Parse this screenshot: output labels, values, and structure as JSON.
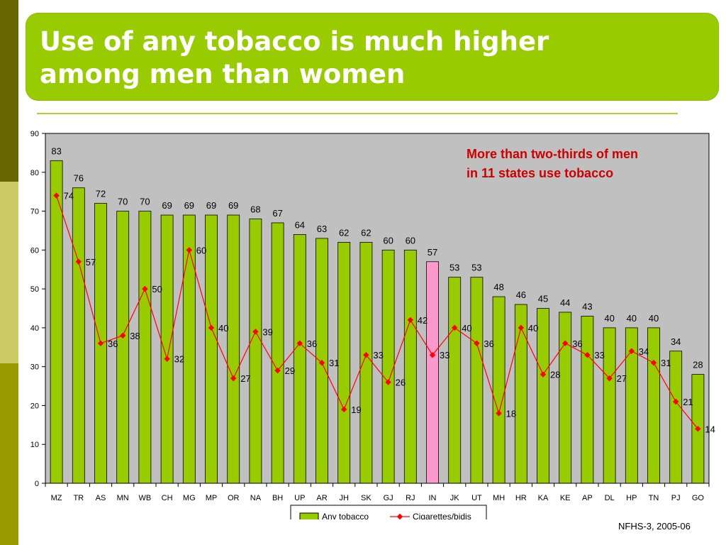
{
  "slide": {
    "title_line1": "Use of any tobacco is much  higher",
    "title_line2": "among men than women",
    "source": "NFHS-3, 2005-06"
  },
  "colors": {
    "title_bg": "#99cc00",
    "bar": "#99cc00",
    "bar_highlight": "#ff99cc",
    "line": "#ff0000",
    "plot_bg": "#c0c0c0",
    "annotation": "#cc0000"
  },
  "chart_data": {
    "type": "bar",
    "categories": [
      "MZ",
      "TR",
      "AS",
      "MN",
      "WB",
      "CH",
      "MG",
      "MP",
      "OR",
      "NA",
      "BH",
      "UP",
      "AR",
      "JH",
      "SK",
      "GJ",
      "RJ",
      "IN",
      "JK",
      "UT",
      "MH",
      "HR",
      "KA",
      "KE",
      "AP",
      "DL",
      "HP",
      "TN",
      "PJ",
      "GO"
    ],
    "highlight_category": "IN",
    "series": [
      {
        "name": "Any tobacco",
        "kind": "bar",
        "values": [
          83,
          76,
          72,
          70,
          70,
          69,
          69,
          69,
          69,
          68,
          67,
          64,
          63,
          62,
          62,
          60,
          60,
          57,
          53,
          53,
          48,
          46,
          45,
          44,
          43,
          40,
          40,
          40,
          34,
          28
        ]
      },
      {
        "name": "Cigarettes/bidis",
        "kind": "line",
        "values": [
          74,
          57,
          36,
          38,
          50,
          32,
          60,
          40,
          27,
          39,
          29,
          36,
          31,
          19,
          33,
          26,
          42,
          33,
          40,
          36,
          18,
          40,
          28,
          36,
          33,
          27,
          34,
          31,
          21,
          14
        ]
      }
    ],
    "yticks": [
      0,
      10,
      20,
      30,
      40,
      50,
      60,
      70,
      80,
      90
    ],
    "ylim": [
      0,
      90
    ],
    "grid": false,
    "legend_position": "bottom",
    "annotation_line1": "More than two-thirds of men",
    "annotation_line2": "in 11 states use tobacco"
  }
}
